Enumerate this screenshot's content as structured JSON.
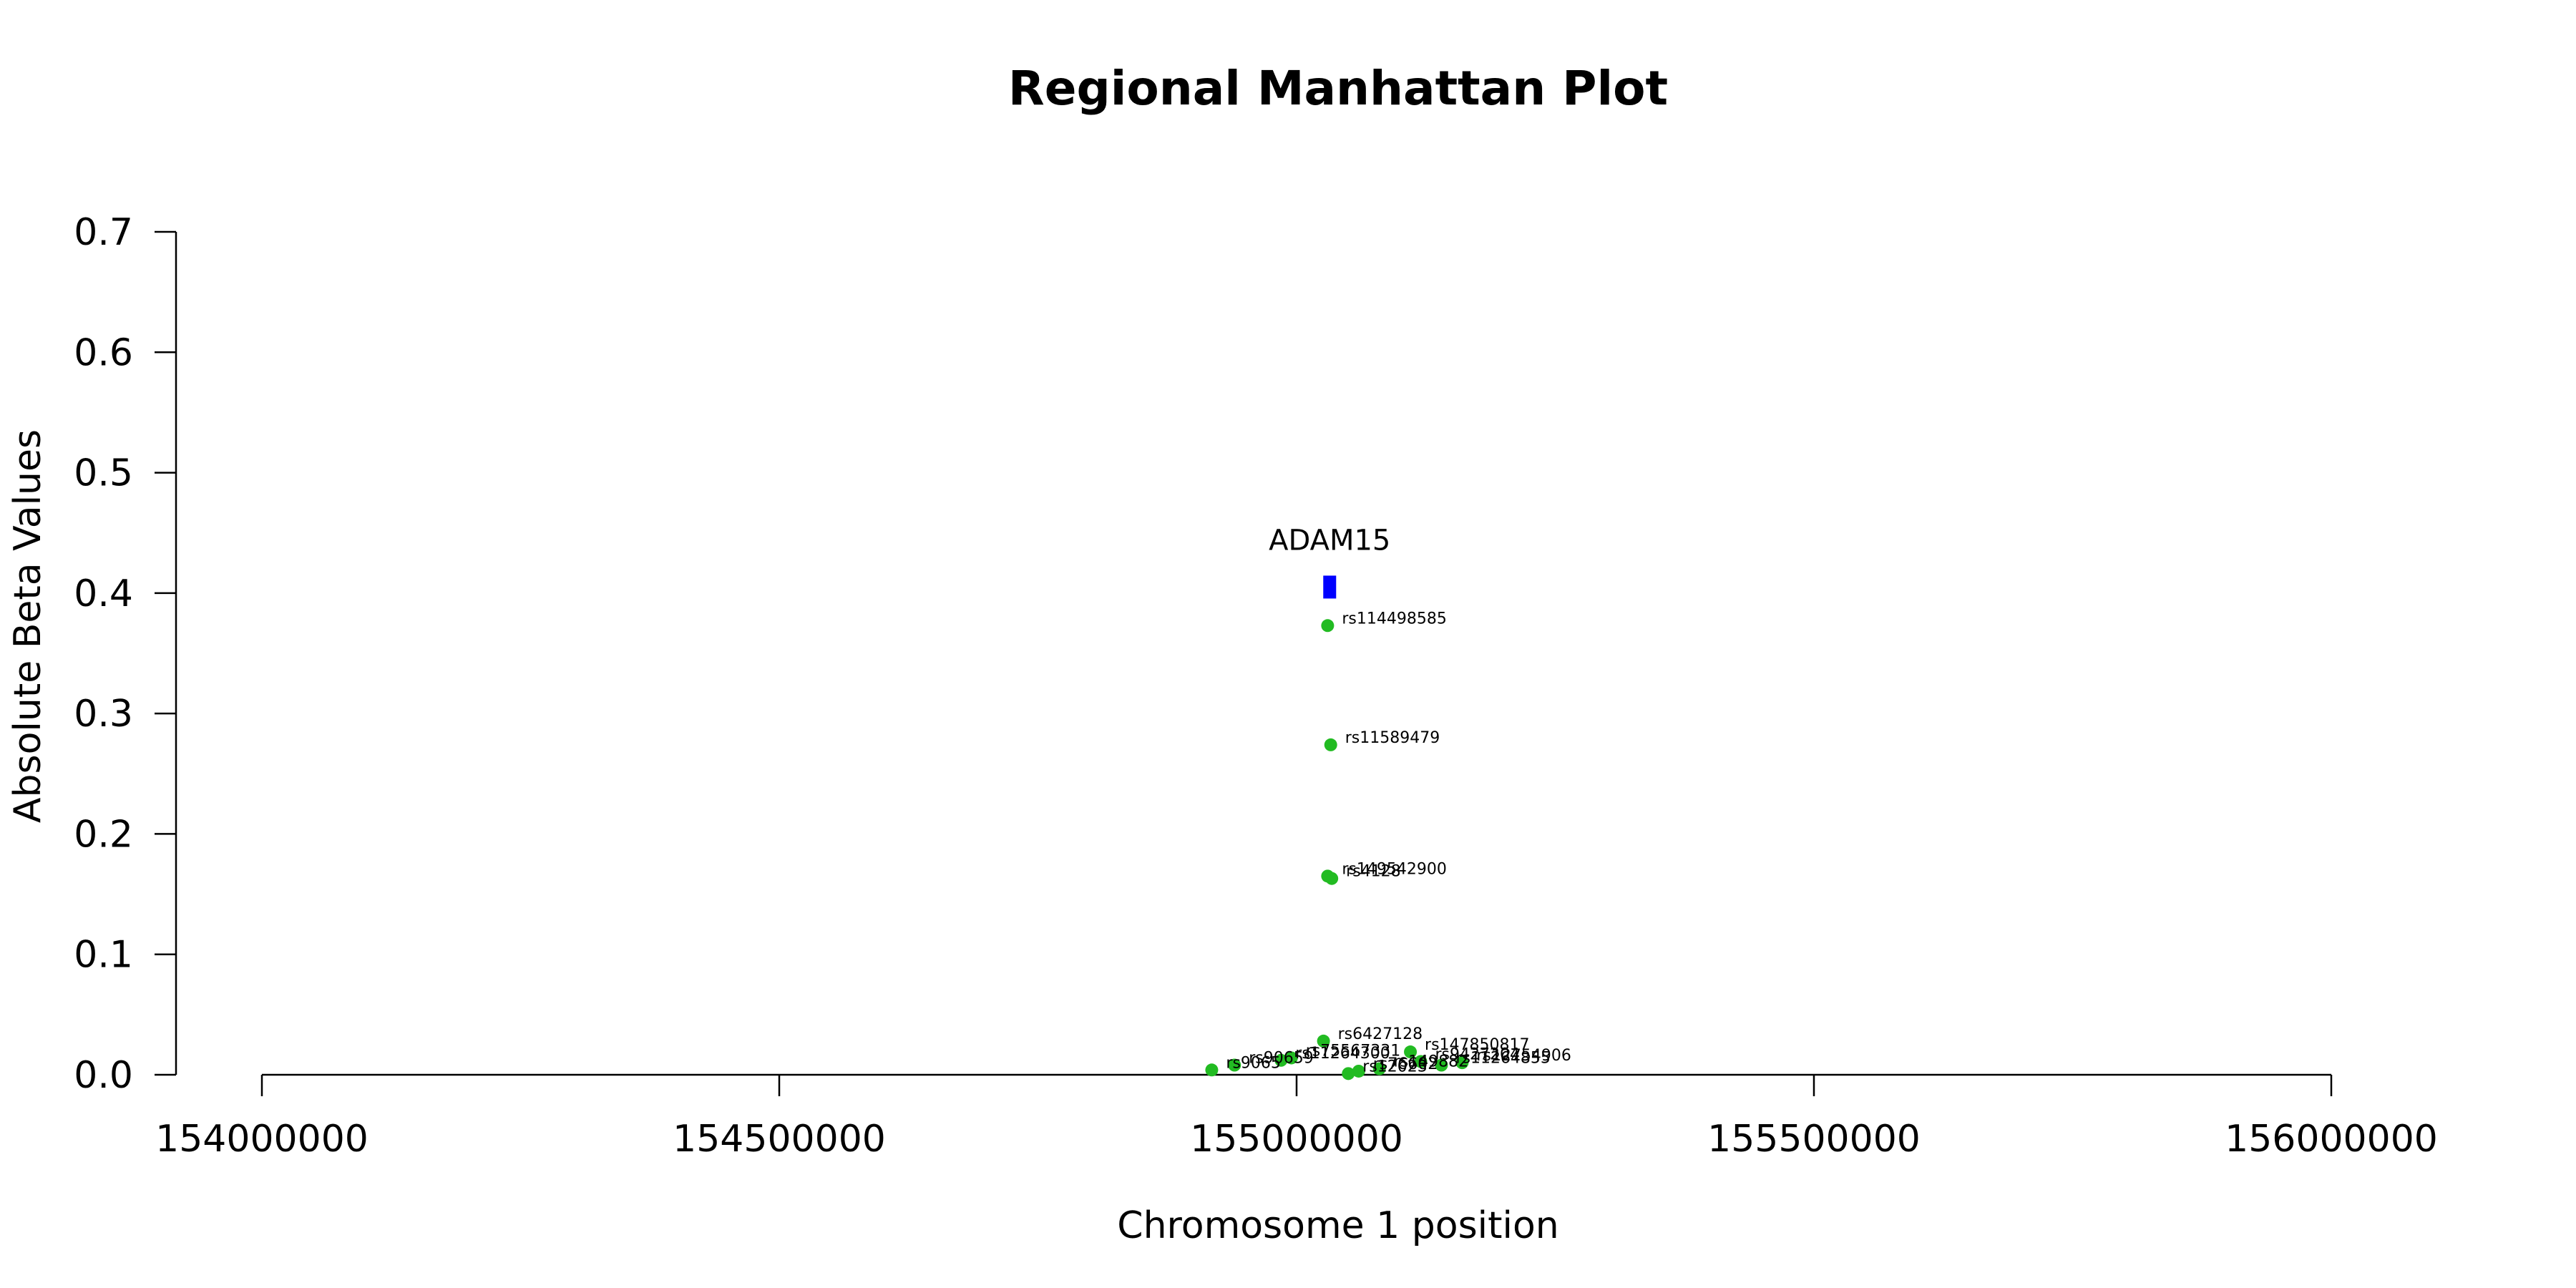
{
  "chart_data": {
    "type": "scatter",
    "title": "Regional Manhattan Plot",
    "xlabel": "Chromosome 1 position",
    "ylabel": "Absolute Beta Values",
    "xlim": [
      154000000,
      156000000
    ],
    "ylim": [
      0,
      0.7
    ],
    "x_ticks": [
      154000000,
      154500000,
      155000000,
      155500000,
      156000000
    ],
    "x_tick_labels": [
      "154000000",
      "154500000",
      "155000000",
      "155500000",
      "156000000"
    ],
    "y_ticks": [
      0.0,
      0.1,
      0.2,
      0.3,
      0.4,
      0.5,
      0.6,
      0.7
    ],
    "y_tick_labels": [
      "0.0",
      "0.1",
      "0.2",
      "0.3",
      "0.4",
      "0.5",
      "0.6",
      "0.7"
    ],
    "grid": false,
    "point_color": "#22bb22",
    "gene_color": "#0000ff",
    "gene": {
      "name": "ADAM15",
      "start": 155026000,
      "end": 155038000,
      "y": 0.405
    },
    "points": [
      {
        "x": 155030000,
        "y": 0.373,
        "label": "rs114498585"
      },
      {
        "x": 155033000,
        "y": 0.274,
        "label": "rs11589479"
      },
      {
        "x": 155030000,
        "y": 0.165,
        "label": "rs149542900"
      },
      {
        "x": 155034000,
        "y": 0.163,
        "label": "rs4128"
      },
      {
        "x": 155026000,
        "y": 0.028,
        "label": "rs6427128"
      },
      {
        "x": 155110000,
        "y": 0.019,
        "label": "rs147850817"
      },
      {
        "x": 154995000,
        "y": 0.014,
        "label": "rs75567331"
      },
      {
        "x": 154985000,
        "y": 0.012,
        "label": "rs11264300"
      },
      {
        "x": 154940000,
        "y": 0.008,
        "label": "rs90659"
      },
      {
        "x": 154918000,
        "y": 0.004,
        "label": "rs9065"
      },
      {
        "x": 155160000,
        "y": 0.01,
        "label": "rs12754906"
      },
      {
        "x": 155120000,
        "y": 0.011,
        "label": "rs9427204"
      },
      {
        "x": 155140000,
        "y": 0.008,
        "label": "rs11264855"
      },
      {
        "x": 155080000,
        "y": 0.005,
        "label": "rs149882"
      },
      {
        "x": 155060000,
        "y": 0.003,
        "label": "rs76602"
      },
      {
        "x": 155050000,
        "y": 0.001,
        "label": "rs12023"
      }
    ]
  }
}
